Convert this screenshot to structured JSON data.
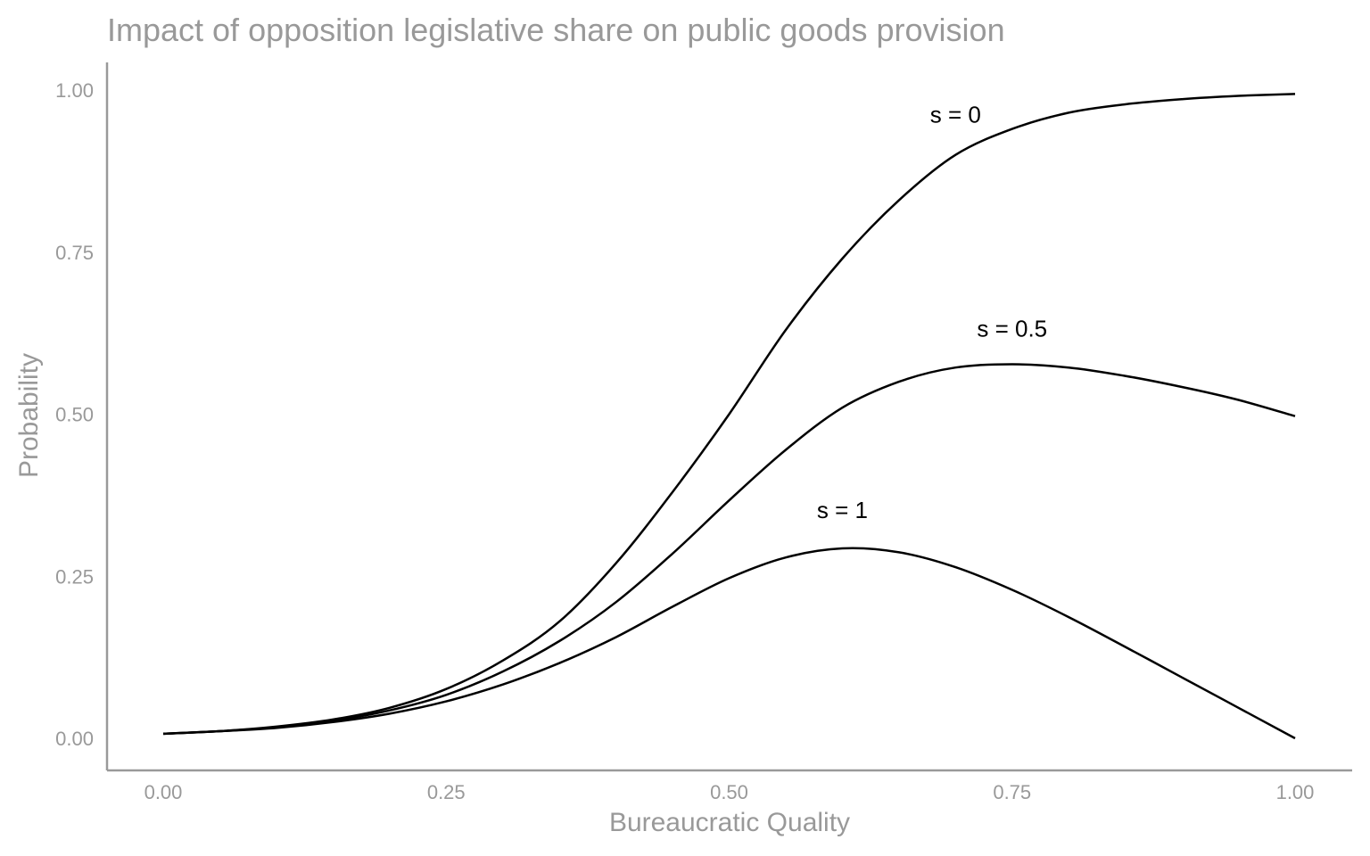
{
  "chart_data": {
    "type": "line",
    "title": "Impact of opposition legislative share on public goods provision",
    "xlabel": "Bureaucratic Quality",
    "ylabel": "Probability",
    "xlim": [
      0,
      1
    ],
    "ylim": [
      0,
      1
    ],
    "x_ticks": [
      "0.00",
      "0.25",
      "0.50",
      "0.75",
      "1.00"
    ],
    "y_ticks": [
      "0.00",
      "0.25",
      "0.50",
      "0.75",
      "1.00"
    ],
    "grid": false,
    "line_color": "#000000",
    "axis_color": "#999999",
    "x": [
      0,
      0.05,
      0.1,
      0.15,
      0.2,
      0.25,
      0.3,
      0.35,
      0.4,
      0.45,
      0.5,
      0.55,
      0.6,
      0.65,
      0.7,
      0.75,
      0.8,
      0.85,
      0.9,
      0.95,
      1
    ],
    "series": [
      {
        "label": "s = 0",
        "label_at": [
          0.7,
          0.95
        ],
        "values": [
          0.007,
          0.011,
          0.018,
          0.029,
          0.047,
          0.076,
          0.12,
          0.18,
          0.27,
          0.38,
          0.5,
          0.63,
          0.74,
          0.83,
          0.9,
          0.94,
          0.965,
          0.978,
          0.986,
          0.991,
          0.994
        ]
      },
      {
        "label": "s = 0.5",
        "label_at": [
          0.75,
          0.62
        ],
        "values": [
          0.007,
          0.011,
          0.017,
          0.027,
          0.043,
          0.067,
          0.103,
          0.15,
          0.21,
          0.285,
          0.367,
          0.445,
          0.51,
          0.55,
          0.572,
          0.577,
          0.572,
          0.559,
          0.542,
          0.522,
          0.497
        ]
      },
      {
        "label": "s = 1",
        "label_at": [
          0.6,
          0.34
        ],
        "values": [
          0.007,
          0.011,
          0.016,
          0.025,
          0.038,
          0.057,
          0.083,
          0.116,
          0.156,
          0.203,
          0.247,
          0.279,
          0.293,
          0.287,
          0.264,
          0.229,
          0.187,
          0.141,
          0.094,
          0.047,
          0.0
        ]
      }
    ]
  }
}
